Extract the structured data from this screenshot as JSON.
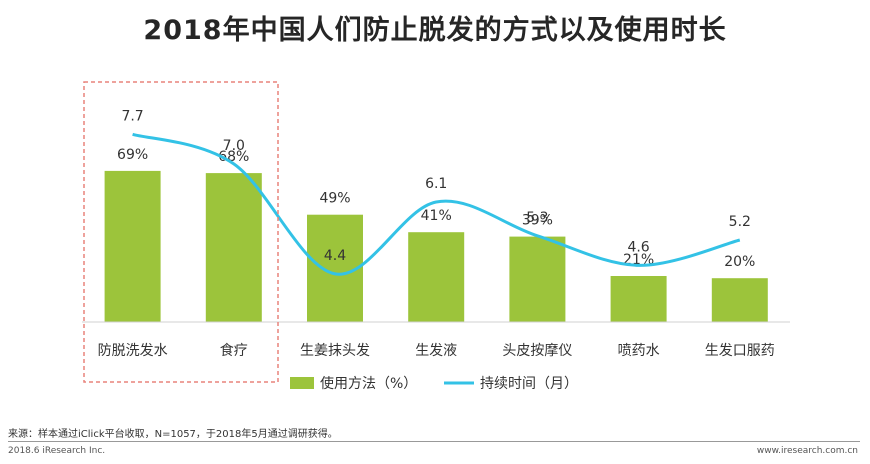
{
  "title": "2018年中国人们防止脱发的方式以及使用时长",
  "chart_data": {
    "type": "bar+line",
    "categories": [
      "防脱洗发水",
      "食疗",
      "生姜抹头发",
      "生发液",
      "头皮按摩仪",
      "喷药水",
      "生发口服药"
    ],
    "series": [
      {
        "name": "使用方法（%）",
        "type": "bar",
        "values": [
          69,
          68,
          49,
          41,
          39,
          21,
          20
        ],
        "labels": [
          "69%",
          "68%",
          "49%",
          "41%",
          "39%",
          "21%",
          "20%"
        ],
        "color": "#9cc43b"
      },
      {
        "name": "持续时间（月）",
        "type": "line",
        "values": [
          7.7,
          7.0,
          4.4,
          6.1,
          5.3,
          4.6,
          5.2
        ],
        "labels": [
          "7.7",
          "7.0",
          "4.4",
          "6.1",
          "5.3",
          "4.6",
          "5.2"
        ],
        "color": "#33c2e6"
      }
    ],
    "highlight": {
      "categories": [
        "防脱洗发水",
        "食疗"
      ],
      "style": "dashed box",
      "color": "#e8837c"
    }
  },
  "legend": {
    "bar_label": "使用方法（%）",
    "line_label": "持续时间（月）"
  },
  "footer": {
    "source": "来源：样本通过iClick平台收取，N=1057，于2018年5月通过调研获得。",
    "copyright": "2018.6 iResearch Inc.",
    "website": "www.iresearch.com.cn"
  }
}
